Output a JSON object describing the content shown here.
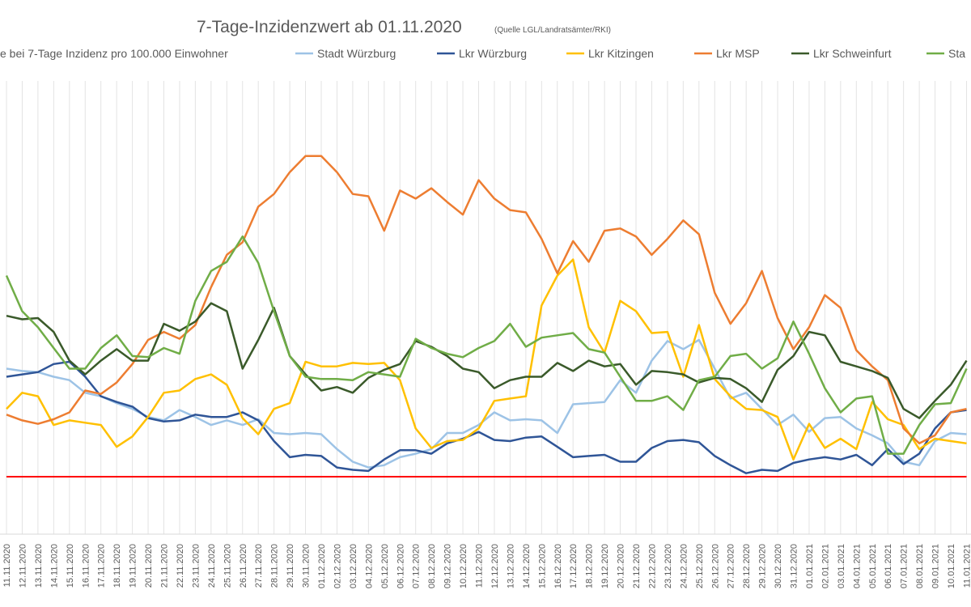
{
  "chart_data": {
    "type": "line",
    "title": "7-Tage-Inzidenzwert ab 01.11.2020",
    "subtitle": "(Quelle LGL/Landratsämter/RKI)",
    "grid": true,
    "ylim": [
      0,
      400
    ],
    "categories": [
      "11.11.2020",
      "12.11.2020",
      "13.11.2020",
      "14.11.2020",
      "15.11.2020",
      "16.11.2020",
      "17.11.2020",
      "18.11.2020",
      "19.11.2020",
      "20.11.2020",
      "21.11.2020",
      "22.11.2020",
      "23.11.2020",
      "24.11.2020",
      "25.11.2020",
      "26.11.2020",
      "27.11.2020",
      "28.11.2020",
      "29.11.2020",
      "30.11.2020",
      "01.12.2020",
      "02.12.2020",
      "03.12.2020",
      "04.12.2020",
      "05.12.2020",
      "06.12.2020",
      "07.12.2020",
      "08.12.2020",
      "09.12.2020",
      "10.12.2020",
      "11.12.2020",
      "12.12.2020",
      "13.12.2020",
      "14.12.2020",
      "15.12.2020",
      "16.12.2020",
      "17.12.2020",
      "18.12.2020",
      "19.12.2020",
      "20.12.2020",
      "21.12.2020",
      "22.12.2020",
      "23.12.2020",
      "24.12.2020",
      "25.12.2020",
      "26.12.2020",
      "27.12.2020",
      "28.12.2020",
      "29.12.2020",
      "30.12.2020",
      "31.12.2020",
      "01.01.2021",
      "02.01.2021",
      "03.01.2021",
      "04.01.2021",
      "05.01.2021",
      "06.01.2021",
      "07.01.2021",
      "08.01.2021",
      "09.01.2021",
      "10.01.2021",
      "11.01.2021"
    ],
    "series": [
      {
        "name": "e bei 7-Tage Inzidenz pro 100.000 Einwohner",
        "color": "#ff0000",
        "values": [
          50,
          50,
          50,
          50,
          50,
          50,
          50,
          50,
          50,
          50,
          50,
          50,
          50,
          50,
          50,
          50,
          50,
          50,
          50,
          50,
          50,
          50,
          50,
          50,
          50,
          50,
          50,
          50,
          50,
          50,
          50,
          50,
          50,
          50,
          50,
          50,
          50,
          50,
          50,
          50,
          50,
          50,
          50,
          50,
          50,
          50,
          50,
          50,
          50,
          50,
          50,
          50,
          50,
          50,
          50,
          50,
          50,
          50,
          50,
          50,
          50,
          50
        ]
      },
      {
        "name": "Stadt Würzburg",
        "color": "#9dc3e6",
        "values": [
          144,
          142,
          141,
          137,
          134,
          123,
          120,
          114,
          109,
          102,
          99,
          108,
          102,
          95,
          99,
          95,
          100,
          88,
          87,
          88,
          87,
          74,
          63,
          58,
          60,
          67,
          70,
          74,
          88,
          88,
          95,
          106,
          99,
          100,
          99,
          88,
          113,
          114,
          115,
          134,
          123,
          151,
          168,
          161,
          169,
          144,
          118,
          123,
          109,
          95,
          104,
          89,
          101,
          102,
          92,
          86,
          79,
          63,
          60,
          81,
          88,
          87
        ]
      },
      {
        "name": "Lkr Würzburg",
        "color": "#2f5597",
        "values": [
          137,
          139,
          141,
          148,
          150,
          137,
          120,
          115,
          111,
          101,
          98,
          99,
          104,
          102,
          102,
          106,
          99,
          81,
          67,
          69,
          68,
          58,
          56,
          55,
          65,
          73,
          73,
          70,
          79,
          83,
          89,
          82,
          81,
          84,
          85,
          76,
          67,
          68,
          69,
          63,
          63,
          75,
          81,
          82,
          80,
          68,
          60,
          53,
          56,
          55,
          62,
          65,
          67,
          65,
          69,
          60,
          74,
          61,
          70,
          92,
          106,
          108
        ]
      },
      {
        "name": "Lkr Kitzingen",
        "color": "#ffc000",
        "values": [
          109,
          123,
          120,
          95,
          99,
          97,
          95,
          76,
          85,
          102,
          123,
          125,
          135,
          139,
          130,
          101,
          87,
          109,
          114,
          150,
          146,
          146,
          149,
          148,
          149,
          134,
          92,
          75,
          81,
          82,
          92,
          116,
          118,
          120,
          199,
          225,
          239,
          180,
          158,
          203,
          194,
          175,
          176,
          137,
          182,
          135,
          120,
          109,
          108,
          102,
          65,
          96,
          75,
          83,
          74,
          115,
          100,
          95,
          74,
          83,
          81,
          79
        ]
      },
      {
        "name": "Lkr MSP",
        "color": "#ed7d31",
        "values": [
          104,
          99,
          96,
          100,
          106,
          125,
          122,
          132,
          148,
          169,
          176,
          170,
          182,
          215,
          243,
          254,
          285,
          296,
          315,
          329,
          329,
          315,
          296,
          294,
          264,
          299,
          292,
          301,
          289,
          278,
          308,
          292,
          282,
          280,
          257,
          227,
          255,
          237,
          264,
          266,
          259,
          243,
          257,
          273,
          261,
          210,
          183,
          201,
          229,
          188,
          161,
          180,
          208,
          197,
          160,
          146,
          134,
          92,
          79,
          86,
          106,
          109
        ]
      },
      {
        "name": "Lkr Schweinfurt",
        "color": "#3a5a2a",
        "values": [
          190,
          187,
          188,
          176,
          151,
          139,
          151,
          161,
          151,
          151,
          183,
          177,
          185,
          201,
          194,
          144,
          169,
          197,
          155,
          139,
          125,
          128,
          123,
          136,
          143,
          148,
          168,
          163,
          155,
          144,
          141,
          127,
          134,
          137,
          137,
          149,
          142,
          151,
          146,
          148,
          130,
          142,
          141,
          139,
          132,
          136,
          135,
          127,
          115,
          143,
          155,
          176,
          173,
          150,
          146,
          142,
          136,
          109,
          101,
          116,
          130,
          151
        ]
      },
      {
        "name": "Sta",
        "color": "#70ad47",
        "values": [
          225,
          194,
          180,
          162,
          144,
          144,
          162,
          173,
          155,
          154,
          162,
          157,
          203,
          229,
          237,
          259,
          236,
          194,
          155,
          137,
          135,
          135,
          134,
          141,
          139,
          137,
          170,
          162,
          157,
          154,
          162,
          168,
          183,
          163,
          171,
          173,
          175,
          161,
          158,
          137,
          116,
          116,
          120,
          108,
          134,
          137,
          155,
          157,
          144,
          153,
          185,
          157,
          127,
          106,
          118,
          120,
          70,
          70,
          95,
          113,
          114,
          144
        ]
      }
    ]
  }
}
